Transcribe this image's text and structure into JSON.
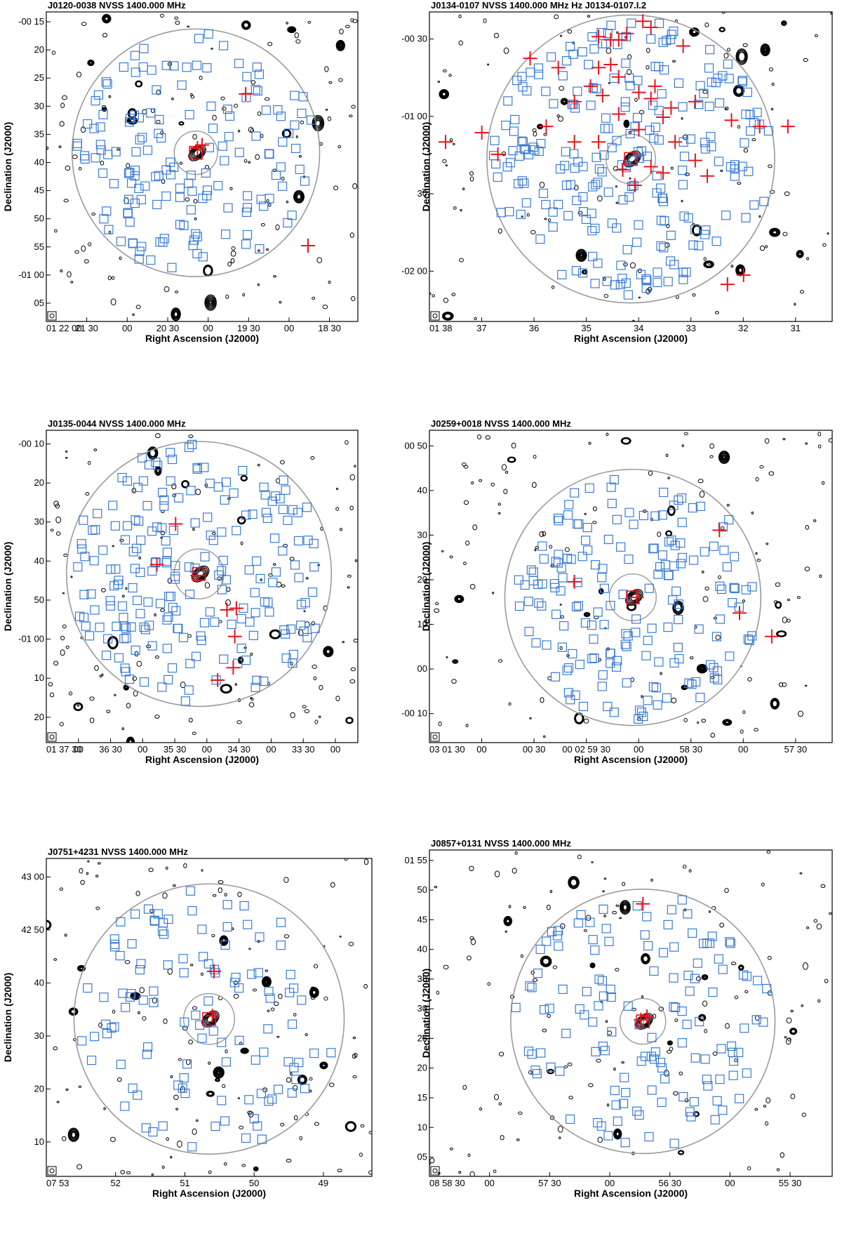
{
  "figure": {
    "beam_symbol": "beam-ellipse",
    "colors": {
      "contour": "#000000",
      "galaxy_marker": "#3a7bd5",
      "cross_marker": "#e8141c",
      "circle": "#9a9a9a"
    }
  },
  "chart_data": [
    {
      "type": "scatter",
      "title": "J0120-0038  NVSS 1400.000 MHz",
      "xlabel": "Right Ascension (J2000)",
      "ylabel": "Declination (J2000)",
      "xticks": [
        "01 22 00",
        "21 30",
        "00",
        "20 30",
        "00",
        "19 30",
        "00",
        "18 30"
      ],
      "yticks": [
        "-00 15",
        "20",
        "25",
        "30",
        "35",
        "40",
        "45",
        "50",
        "55",
        "-01 00",
        "05"
      ],
      "center": [
        0.48,
        0.455
      ],
      "outer_circle_radius": 0.4,
      "inner_circle_radius": 0.07,
      "crosses": [
        [
          0.485,
          0.44
        ],
        [
          0.5,
          0.43
        ],
        [
          0.64,
          0.265
        ],
        [
          0.84,
          0.755
        ]
      ],
      "blue_squares": 150,
      "seed": 11
    },
    {
      "type": "scatter",
      "title": "J0134-0107  NVSS  1400.000 MHz  Hz  J0134-0107.I.2",
      "xlabel": "Right Ascension (J2000)",
      "ylabel": "Declination (J2000)",
      "xticks": [
        "01 38",
        "37",
        "36",
        "35",
        "34",
        "33",
        "32",
        "31"
      ],
      "yticks": [
        "-00 30",
        "-01 00",
        "30",
        "-02 00"
      ],
      "center": [
        0.5,
        0.475
      ],
      "outer_circle_radius": 0.465,
      "inner_circle_radius": 0.08,
      "crosses": [
        [
          0.42,
          0.08
        ],
        [
          0.45,
          0.09
        ],
        [
          0.47,
          0.09
        ],
        [
          0.49,
          0.07
        ],
        [
          0.53,
          0.03
        ],
        [
          0.55,
          0.05
        ],
        [
          0.63,
          0.11
        ],
        [
          0.25,
          0.15
        ],
        [
          0.32,
          0.18
        ],
        [
          0.42,
          0.18
        ],
        [
          0.45,
          0.17
        ],
        [
          0.47,
          0.21
        ],
        [
          0.4,
          0.24
        ],
        [
          0.36,
          0.29
        ],
        [
          0.43,
          0.27
        ],
        [
          0.52,
          0.26
        ],
        [
          0.56,
          0.24
        ],
        [
          0.55,
          0.28
        ],
        [
          0.6,
          0.31
        ],
        [
          0.66,
          0.29
        ],
        [
          0.47,
          0.33
        ],
        [
          0.58,
          0.34
        ],
        [
          0.29,
          0.37
        ],
        [
          0.36,
          0.42
        ],
        [
          0.42,
          0.42
        ],
        [
          0.52,
          0.38
        ],
        [
          0.61,
          0.42
        ],
        [
          0.75,
          0.35
        ],
        [
          0.82,
          0.37
        ],
        [
          0.89,
          0.37
        ],
        [
          0.13,
          0.39
        ],
        [
          0.04,
          0.42
        ],
        [
          0.17,
          0.46
        ],
        [
          0.48,
          0.51
        ],
        [
          0.51,
          0.56
        ],
        [
          0.55,
          0.5
        ],
        [
          0.58,
          0.52
        ],
        [
          0.66,
          0.48
        ],
        [
          0.69,
          0.53
        ],
        [
          0.78,
          0.85
        ],
        [
          0.74,
          0.88
        ]
      ],
      "blue_squares": 230,
      "seed": 23
    },
    {
      "type": "scatter",
      "title": "J0135-0044  NVSS 1400.000 MHz",
      "xlabel": "Right Ascension (J2000)",
      "ylabel": "Declination (J2000)",
      "xticks": [
        "01 37 30",
        "00",
        "36 30",
        "00",
        "35 30",
        "00",
        "34 30",
        "00",
        "33 30",
        "00"
      ],
      "yticks": [
        "-00 10",
        "20",
        "30",
        "40",
        "50",
        "-01 00",
        "10",
        "20"
      ],
      "center": [
        0.49,
        0.46
      ],
      "outer_circle_radius": 0.425,
      "inner_circle_radius": 0.08,
      "crosses": [
        [
          0.415,
          0.3
        ],
        [
          0.355,
          0.43
        ],
        [
          0.485,
          0.465
        ],
        [
          0.58,
          0.575
        ],
        [
          0.61,
          0.57
        ],
        [
          0.605,
          0.66
        ],
        [
          0.6,
          0.76
        ],
        [
          0.55,
          0.8
        ]
      ],
      "blue_squares": 200,
      "seed": 37
    },
    {
      "type": "scatter",
      "title": "J0259+0018 NVSS 1400.000 MHz",
      "xlabel": "Right Ascension (J2000)",
      "ylabel": "Declination (J2000)",
      "xticks": [
        "03 01 30",
        "00",
        "00 30",
        "00 02 59 30",
        "00",
        "58 30",
        "00",
        "57 30"
      ],
      "yticks": [
        "00 50",
        "40",
        "30",
        "20",
        "10",
        "00",
        "-00 10"
      ],
      "center": [
        0.505,
        0.535
      ],
      "outer_circle_radius": 0.41,
      "inner_circle_radius": 0.075,
      "crosses": [
        [
          0.36,
          0.485
        ],
        [
          0.515,
          0.535
        ],
        [
          0.72,
          0.32
        ],
        [
          0.77,
          0.585
        ],
        [
          0.85,
          0.66
        ]
      ],
      "blue_squares": 170,
      "seed": 53
    },
    {
      "type": "scatter",
      "title": "J0751+4231  NVSS 1400.000 MHz",
      "xlabel": "Right Ascension (J2000)",
      "ylabel": "Declination (J2000)",
      "xticks": [
        "07 53",
        "52",
        "51",
        "50",
        "49"
      ],
      "yticks": [
        "43 00",
        "42 50",
        "40",
        "30",
        "20",
        "10"
      ],
      "center": [
        0.5,
        0.505
      ],
      "outer_circle_radius": 0.425,
      "inner_circle_radius": 0.08,
      "crosses": [
        [
          0.51,
          0.495
        ],
        [
          0.515,
          0.355
        ]
      ],
      "blue_squares": 110,
      "seed": 71
    },
    {
      "type": "scatter",
      "title": "J0857+0131  NVSS 1400.000 MHz",
      "xlabel": "Right Ascension (J2000)",
      "ylabel": "Declination (J2000)",
      "xticks": [
        "08 58 30",
        "00",
        "57 30",
        "00",
        "56 30",
        "00",
        "55 30"
      ],
      "yticks": [
        "01 55",
        "50",
        "45",
        "40",
        "35",
        "30",
        "25",
        "20",
        "15",
        "10",
        "05"
      ],
      "center": [
        0.53,
        0.525
      ],
      "outer_circle_radius": 0.405,
      "inner_circle_radius": 0.07,
      "crosses": [
        [
          0.525,
          0.52
        ],
        [
          0.54,
          0.51
        ],
        [
          0.53,
          0.165
        ]
      ],
      "blue_squares": 130,
      "seed": 89
    }
  ]
}
